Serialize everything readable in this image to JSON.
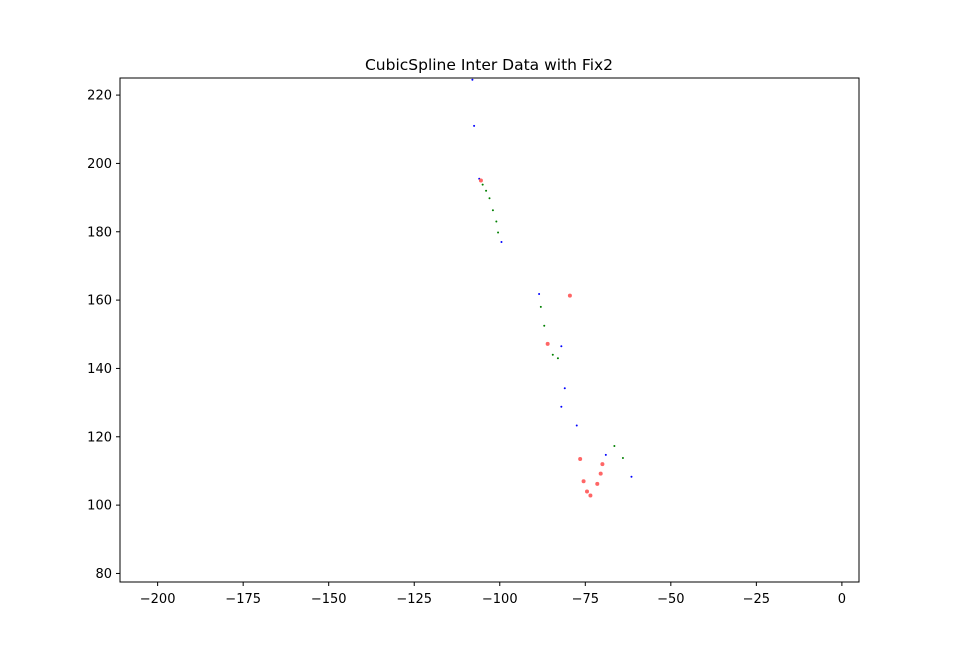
{
  "chart_data": {
    "type": "scatter",
    "title": "CubicSpline Inter Data with Fix2",
    "xlabel": "",
    "ylabel": "",
    "xlim": [
      -211,
      5
    ],
    "ylim": [
      77.5,
      225
    ],
    "xticks": [
      -200,
      -175,
      -150,
      -125,
      -100,
      -75,
      -50,
      -25,
      0
    ],
    "xtick_labels": [
      "−200",
      "−175",
      "−150",
      "−125",
      "−100",
      "−75",
      "−50",
      "−25",
      "0"
    ],
    "yticks": [
      80,
      100,
      120,
      140,
      160,
      180,
      200,
      220
    ],
    "ytick_labels": [
      "80",
      "100",
      "120",
      "140",
      "160",
      "180",
      "200",
      "220"
    ],
    "grid": false,
    "legend": "none",
    "series": [
      {
        "color": "#0000ff",
        "marker_size": "tiny",
        "points": [
          [
            -108.0,
            224.5
          ],
          [
            -107.5,
            211.0
          ],
          [
            -106.0,
            195.5
          ],
          [
            -99.5,
            177.0
          ],
          [
            -88.5,
            161.8
          ],
          [
            -82.0,
            146.5
          ],
          [
            -81.0,
            134.2
          ],
          [
            -82.0,
            128.8
          ],
          [
            -77.5,
            123.3
          ],
          [
            -69.0,
            114.7
          ],
          [
            -61.5,
            108.3
          ]
        ]
      },
      {
        "color": "#008000",
        "marker_size": "tiny",
        "points": [
          [
            -105.0,
            193.8
          ],
          [
            -104.0,
            192.0
          ],
          [
            -103.0,
            189.8
          ],
          [
            -102.0,
            186.3
          ],
          [
            -101.0,
            183.0
          ],
          [
            -100.5,
            179.8
          ],
          [
            -88.0,
            158.0
          ],
          [
            -87.0,
            152.5
          ],
          [
            -84.5,
            144.0
          ],
          [
            -83.0,
            143.0
          ],
          [
            -66.5,
            117.3
          ],
          [
            -64.0,
            113.8
          ]
        ]
      },
      {
        "color": "#ff6666",
        "marker_size": "small",
        "points": [
          [
            -105.5,
            195.0
          ],
          [
            -79.5,
            161.3
          ],
          [
            -86.0,
            147.2
          ],
          [
            -76.5,
            113.5
          ],
          [
            -75.5,
            107.0
          ],
          [
            -74.5,
            104.0
          ],
          [
            -73.5,
            102.8
          ],
          [
            -71.5,
            106.2
          ],
          [
            -70.5,
            109.2
          ],
          [
            -70.0,
            112.0
          ]
        ]
      }
    ]
  }
}
